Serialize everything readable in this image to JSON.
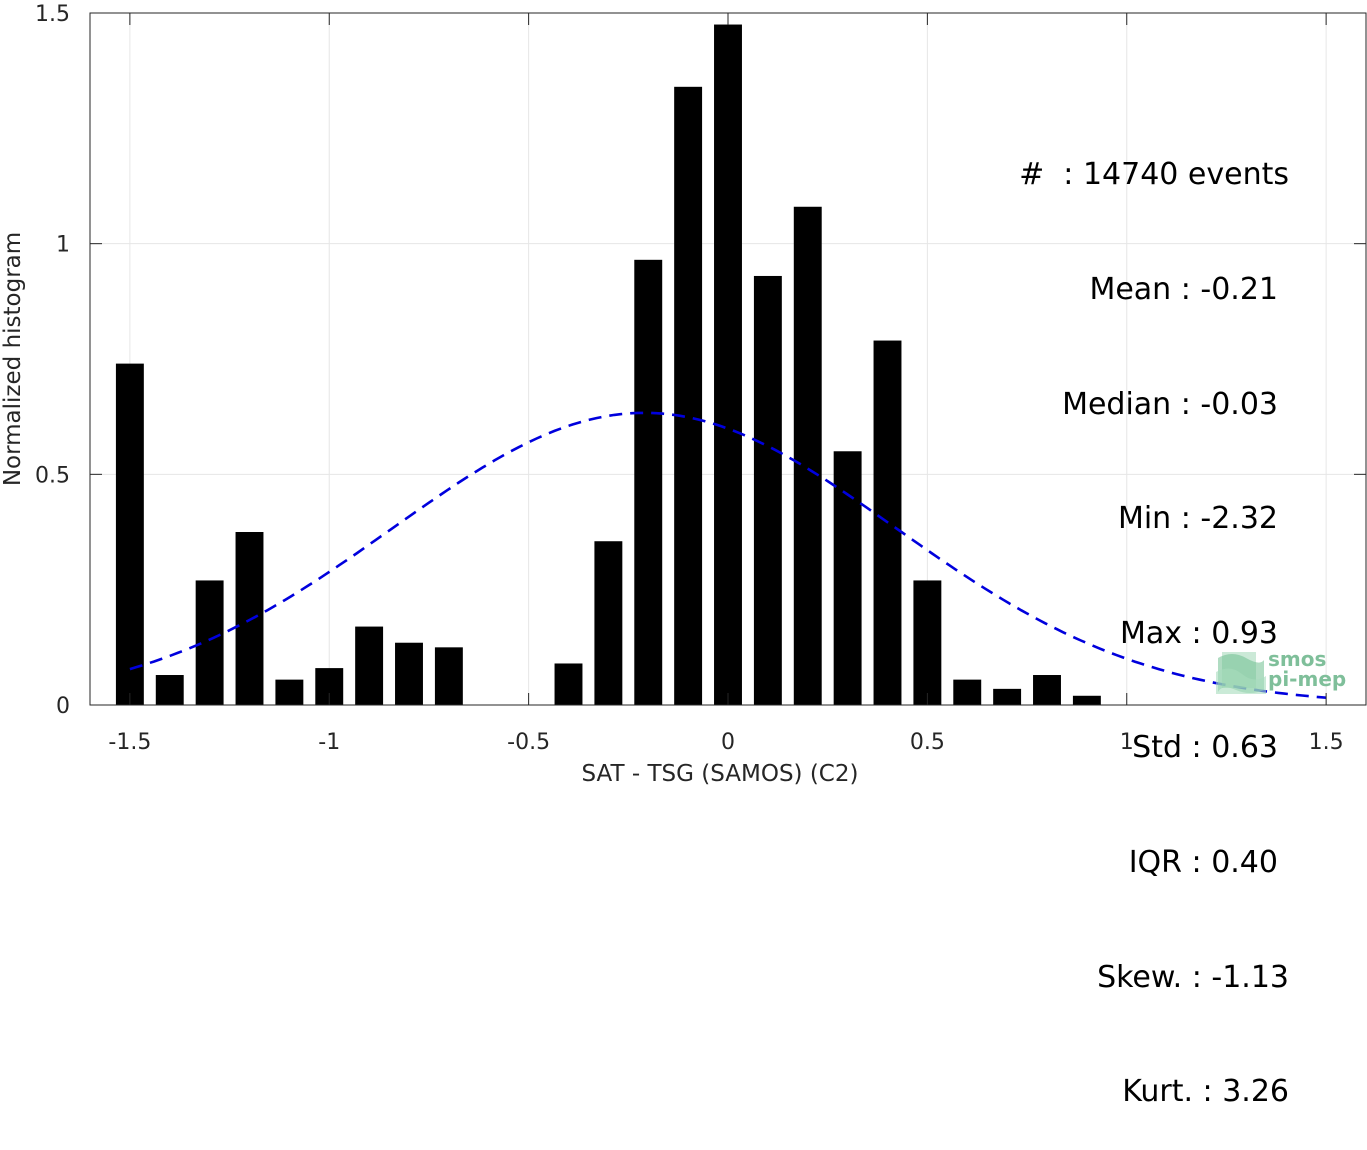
{
  "chart_data": {
    "type": "bar",
    "xlabel": "SAT - TSG (SAMOS) (C2)",
    "ylabel": "Normalized histogram",
    "xlim": [
      -1.6,
      1.6
    ],
    "ylim": [
      0,
      1.5
    ],
    "xticks": [
      -1.5,
      -1,
      -0.5,
      0,
      0.5,
      1,
      1.5
    ],
    "xtick_labels": [
      "-1.5",
      "-1",
      "-0.5",
      "0",
      "0.5",
      "1",
      "1.5"
    ],
    "yticks": [
      0,
      0.5,
      1,
      1.5
    ],
    "ytick_labels": [
      "0",
      "0.5",
      "1",
      "1.5"
    ],
    "grid": true,
    "bar_width": 0.07,
    "bar_color": "#000000",
    "bins": [
      {
        "x": -1.5,
        "y": 0.74
      },
      {
        "x": -1.4,
        "y": 0.065
      },
      {
        "x": -1.3,
        "y": 0.27
      },
      {
        "x": -1.2,
        "y": 0.375
      },
      {
        "x": -1.1,
        "y": 0.055
      },
      {
        "x": -1.0,
        "y": 0.08
      },
      {
        "x": -0.9,
        "y": 0.17
      },
      {
        "x": -0.8,
        "y": 0.135
      },
      {
        "x": -0.7,
        "y": 0.125
      },
      {
        "x": -0.6,
        "y": 0
      },
      {
        "x": -0.5,
        "y": 0
      },
      {
        "x": -0.4,
        "y": 0.09
      },
      {
        "x": -0.3,
        "y": 0.355
      },
      {
        "x": -0.2,
        "y": 0.965
      },
      {
        "x": -0.1,
        "y": 1.34
      },
      {
        "x": 0.0,
        "y": 1.475
      },
      {
        "x": 0.1,
        "y": 0.93
      },
      {
        "x": 0.2,
        "y": 1.08
      },
      {
        "x": 0.3,
        "y": 0.55
      },
      {
        "x": 0.4,
        "y": 0.79
      },
      {
        "x": 0.5,
        "y": 0.27
      },
      {
        "x": 0.6,
        "y": 0.055
      },
      {
        "x": 0.7,
        "y": 0.035
      },
      {
        "x": 0.8,
        "y": 0.065
      },
      {
        "x": 0.9,
        "y": 0.02
      }
    ],
    "fit_curve": {
      "type": "gaussian",
      "mean": -0.21,
      "std": 0.63,
      "x_range": [
        -1.5,
        1.5
      ],
      "color": "#0000dd",
      "style": "dashed"
    }
  },
  "stats": {
    "count": "#  : 14740 events",
    "mean": "Mean : -0.21",
    "median": "Median : -0.03",
    "min": "Min : -2.32",
    "max": "Max : 0.93",
    "std": "Std : 0.63",
    "iqr": "IQR : 0.40",
    "skew": "Skew. : -1.13",
    "kurt": "Kurt. : 3.26"
  },
  "logo": {
    "line1": "smos",
    "line2": "pi-mep",
    "color": "#7fbf9a"
  }
}
